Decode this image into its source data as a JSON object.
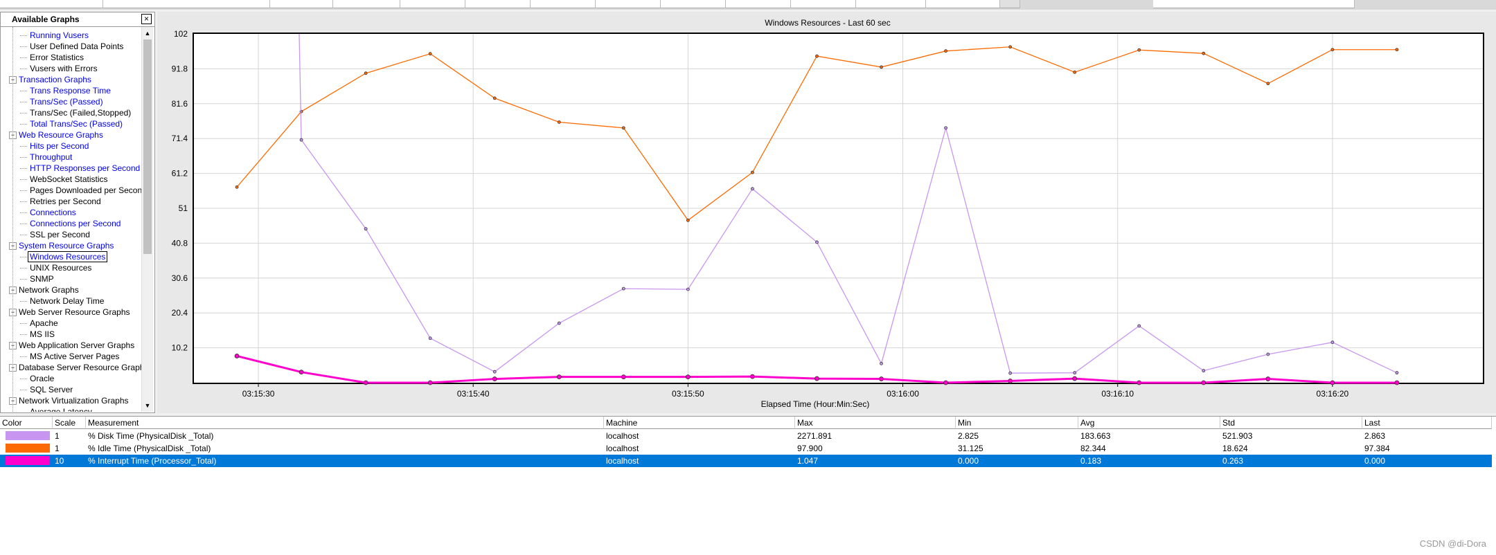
{
  "panel": {
    "title": "Available Graphs",
    "close_label": "×",
    "items": [
      {
        "label": "Running Vusers",
        "level": 2,
        "blue": true
      },
      {
        "label": "User Defined Data Points",
        "level": 2,
        "blue": false
      },
      {
        "label": "Error Statistics",
        "level": 2,
        "blue": false
      },
      {
        "label": "Vusers with Errors",
        "level": 2,
        "blue": false
      },
      {
        "label": "Transaction Graphs",
        "level": 1,
        "blue": true,
        "toggle": "−"
      },
      {
        "label": "Trans Response Time",
        "level": 2,
        "blue": true
      },
      {
        "label": "Trans/Sec (Passed)",
        "level": 2,
        "blue": true
      },
      {
        "label": "Trans/Sec (Failed,Stopped)",
        "level": 2,
        "blue": false
      },
      {
        "label": "Total Trans/Sec (Passed)",
        "level": 2,
        "blue": true
      },
      {
        "label": "Web Resource Graphs",
        "level": 1,
        "blue": true,
        "toggle": "−"
      },
      {
        "label": "Hits per Second",
        "level": 2,
        "blue": true
      },
      {
        "label": "Throughput",
        "level": 2,
        "blue": true
      },
      {
        "label": "HTTP Responses per Second",
        "level": 2,
        "blue": true
      },
      {
        "label": "WebSocket Statistics",
        "level": 2,
        "blue": false
      },
      {
        "label": "Pages Downloaded per Second",
        "level": 2,
        "blue": false
      },
      {
        "label": "Retries per Second",
        "level": 2,
        "blue": false
      },
      {
        "label": "Connections",
        "level": 2,
        "blue": true
      },
      {
        "label": "Connections per Second",
        "level": 2,
        "blue": true
      },
      {
        "label": "SSL per Second",
        "level": 2,
        "blue": false
      },
      {
        "label": "System Resource Graphs",
        "level": 1,
        "blue": true,
        "toggle": "−"
      },
      {
        "label": "Windows Resources",
        "level": 2,
        "blue": true,
        "selected": true
      },
      {
        "label": "UNIX Resources",
        "level": 2,
        "blue": false
      },
      {
        "label": "SNMP",
        "level": 2,
        "blue": false
      },
      {
        "label": "Network Graphs",
        "level": 1,
        "blue": false,
        "toggle": "−"
      },
      {
        "label": "Network Delay Time",
        "level": 2,
        "blue": false
      },
      {
        "label": "Web Server Resource Graphs",
        "level": 1,
        "blue": false,
        "toggle": "−"
      },
      {
        "label": "Apache",
        "level": 2,
        "blue": false
      },
      {
        "label": "MS IIS",
        "level": 2,
        "blue": false
      },
      {
        "label": "Web Application Server Graphs",
        "level": 1,
        "blue": false,
        "toggle": "−"
      },
      {
        "label": "MS Active Server Pages",
        "level": 2,
        "blue": false
      },
      {
        "label": "Database Server Resource Graphs",
        "level": 1,
        "blue": false,
        "toggle": "−"
      },
      {
        "label": "Oracle",
        "level": 2,
        "blue": false
      },
      {
        "label": "SQL Server",
        "level": 2,
        "blue": false
      },
      {
        "label": "Network Virtualization Graphs",
        "level": 1,
        "blue": false,
        "toggle": "−"
      },
      {
        "label": "Average Latency",
        "level": 2,
        "blue": false
      }
    ]
  },
  "chart_data": {
    "type": "line",
    "title": "Windows Resources - Last 60 sec",
    "xlabel": "Elapsed Time (Hour:Min:Sec)",
    "ylabel": "",
    "ylim": [
      0,
      102
    ],
    "yticks": [
      "102",
      "91.8",
      "81.6",
      "71.4",
      "61.2",
      "51",
      "40.8",
      "30.6",
      "20.4",
      "10.2"
    ],
    "ytick_values": [
      102,
      91.8,
      81.6,
      71.4,
      61.2,
      51,
      40.8,
      30.6,
      20.4,
      10.2
    ],
    "xlim": [
      "03:15:27",
      "03:16:27"
    ],
    "xticks": [
      "03:15:30",
      "03:15:40",
      "03:15:50",
      "03:16:00",
      "03:16:10",
      "03:16:20"
    ],
    "x": [
      "03:15:29",
      "03:15:32",
      "03:15:35",
      "03:15:38",
      "03:15:41",
      "03:15:44",
      "03:15:47",
      "03:15:50",
      "03:15:53",
      "03:15:56",
      "03:15:59",
      "03:16:02",
      "03:16:05",
      "03:16:08",
      "03:16:11",
      "03:16:14",
      "03:16:17",
      "03:16:20",
      "03:16:23"
    ],
    "grid": true,
    "series": [
      {
        "name": "% Idle Time (PhysicalDisk _Total)",
        "color": "#ff6a00",
        "values": [
          57.2,
          79.3,
          90.5,
          96.2,
          83.2,
          76.2,
          74.5,
          47.5,
          61.5,
          95.5,
          92.3,
          97.0,
          98.2,
          90.8,
          97.3,
          96.3,
          87.5,
          97.4,
          97.4
        ]
      },
      {
        "name": "% Disk Time (PhysicalDisk _Total)",
        "color": "#c896f0",
        "values": [
          null,
          71.0,
          45.0,
          13.0,
          3.2,
          17.4,
          27.5,
          27.3,
          56.7,
          41.1,
          5.6,
          74.5,
          2.8,
          2.9,
          16.6,
          3.5,
          8.3,
          11.8,
          2.9
        ],
        "spike": {
          "from_x": "03:15:31.9",
          "from_y": 102
        }
      },
      {
        "name": "% Interrupt Time (Processor_Total)",
        "color": "#ff00cc",
        "values": [
          7.8,
          3.1,
          0,
          0,
          1.1,
          1.7,
          1.7,
          1.7,
          1.8,
          1.2,
          1.1,
          0,
          0.5,
          1.2,
          0,
          0,
          1.1,
          0,
          0
        ]
      }
    ]
  },
  "legend": {
    "headers": [
      "Color",
      "Scale",
      "Measurement",
      "Machine",
      "Max",
      "Min",
      "Avg",
      "Std",
      "Last"
    ],
    "rows": [
      {
        "color": "#c896f0",
        "scale": "1",
        "measurement": "% Disk Time (PhysicalDisk _Total)",
        "machine": "localhost",
        "max": "2271.891",
        "min": "2.825",
        "avg": "183.663",
        "std": "521.903",
        "last": "2.863",
        "selected": false
      },
      {
        "color": "#ff6a00",
        "scale": "1",
        "measurement": "% Idle Time (PhysicalDisk _Total)",
        "machine": "localhost",
        "max": "97.900",
        "min": "31.125",
        "avg": "82.344",
        "std": "18.624",
        "last": "97.384",
        "selected": false
      },
      {
        "color": "#ff00cc",
        "scale": "10",
        "measurement": "% Interrupt Time (Processor_Total)",
        "machine": "localhost",
        "max": "1.047",
        "min": "0.000",
        "avg": "0.183",
        "std": "0.263",
        "last": "0.000",
        "selected": true
      }
    ]
  },
  "watermark": "CSDN @di-Dora"
}
